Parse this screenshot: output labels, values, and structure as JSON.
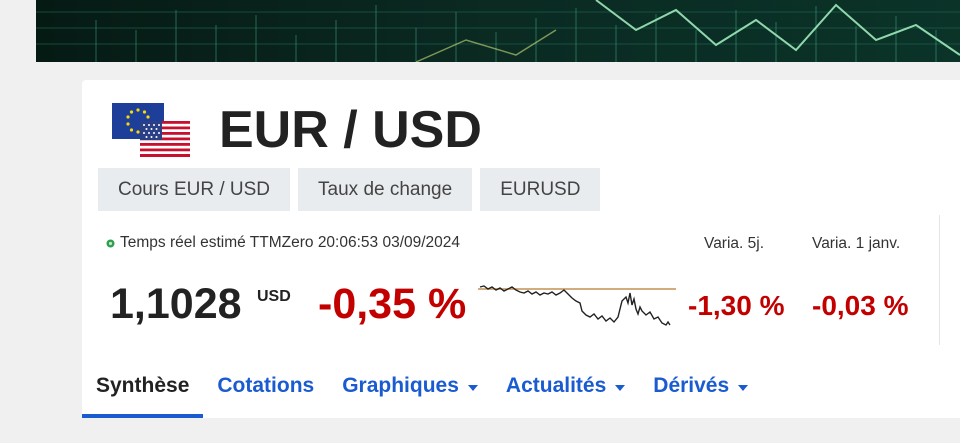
{
  "banner": {
    "icon": "market-chart-banner"
  },
  "header": {
    "flag_icon": "eur-usd-flags-icon",
    "title": "EUR / USD"
  },
  "tags": [
    {
      "label": "Cours EUR / USD"
    },
    {
      "label": "Taux de change"
    },
    {
      "label": "EURUSD"
    }
  ],
  "quote": {
    "realtime_text": "Temps réel estimé TTMZero 20:06:53 03/09/2024",
    "status_color": "#2e9e4f",
    "price": "1,1028",
    "currency": "USD",
    "change": "-0,35 %",
    "var5_label": "Varia. 5j.",
    "var5_value": "-1,30 %",
    "ytd_label": "Varia. 1 janv.",
    "ytd_value": "-0,03 %",
    "change_color": "#c20000"
  },
  "nav": {
    "items": [
      {
        "label": "Synthèse",
        "active": true,
        "dropdown": false
      },
      {
        "label": "Cotations",
        "active": false,
        "dropdown": false
      },
      {
        "label": "Graphiques",
        "active": false,
        "dropdown": true
      },
      {
        "label": "Actualités",
        "active": false,
        "dropdown": true
      },
      {
        "label": "Dérivés",
        "active": false,
        "dropdown": true
      }
    ]
  }
}
